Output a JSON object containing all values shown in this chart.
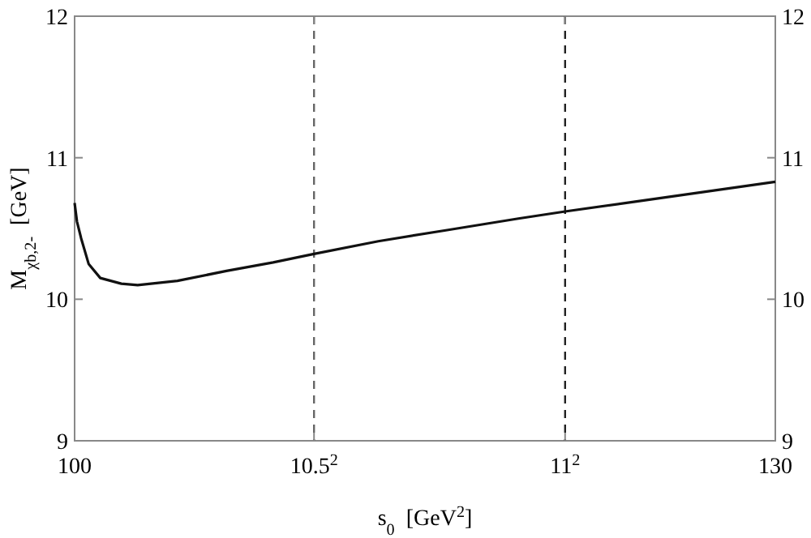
{
  "chart_data": {
    "type": "line",
    "xlabel": "s$_{0}$  [GeV$^{2}$]",
    "ylabel": "M$_{χb,2-}$  [GeV]",
    "xlim": [
      100,
      130
    ],
    "xticks": [
      100,
      {
        "value": 110.25,
        "label": "10.5$^{2}$"
      },
      {
        "value": 121,
        "label": "11$^{2}$"
      },
      130
    ],
    "ylim": [
      9,
      12
    ],
    "yticks": [
      9,
      10,
      11,
      12
    ],
    "y2lim": [
      9,
      12
    ],
    "y2ticks": [
      9,
      10,
      11,
      12
    ],
    "ref_lines": [
      {
        "axis": "x",
        "value": 110.25,
        "color": "#666666",
        "line_style": "dashed"
      },
      {
        "axis": "x",
        "value": 121,
        "color": "#222222",
        "line_style": "dashed"
      }
    ],
    "series": [
      {
        "color": "#111111",
        "x": [
          100,
          100.1,
          100.28,
          100.6,
          101.1,
          102,
          102.7,
          104.4,
          106.5,
          108.5,
          110.25,
          113,
          116,
          119,
          121,
          124,
          127,
          130
        ],
        "values": [
          10.68,
          10.55,
          10.43,
          10.25,
          10.15,
          10.11,
          10.1,
          10.13,
          10.2,
          10.26,
          10.32,
          10.41,
          10.49,
          10.57,
          10.62,
          10.69,
          10.76,
          10.83
        ]
      }
    ],
    "grid": false,
    "line_style": "solid"
  }
}
